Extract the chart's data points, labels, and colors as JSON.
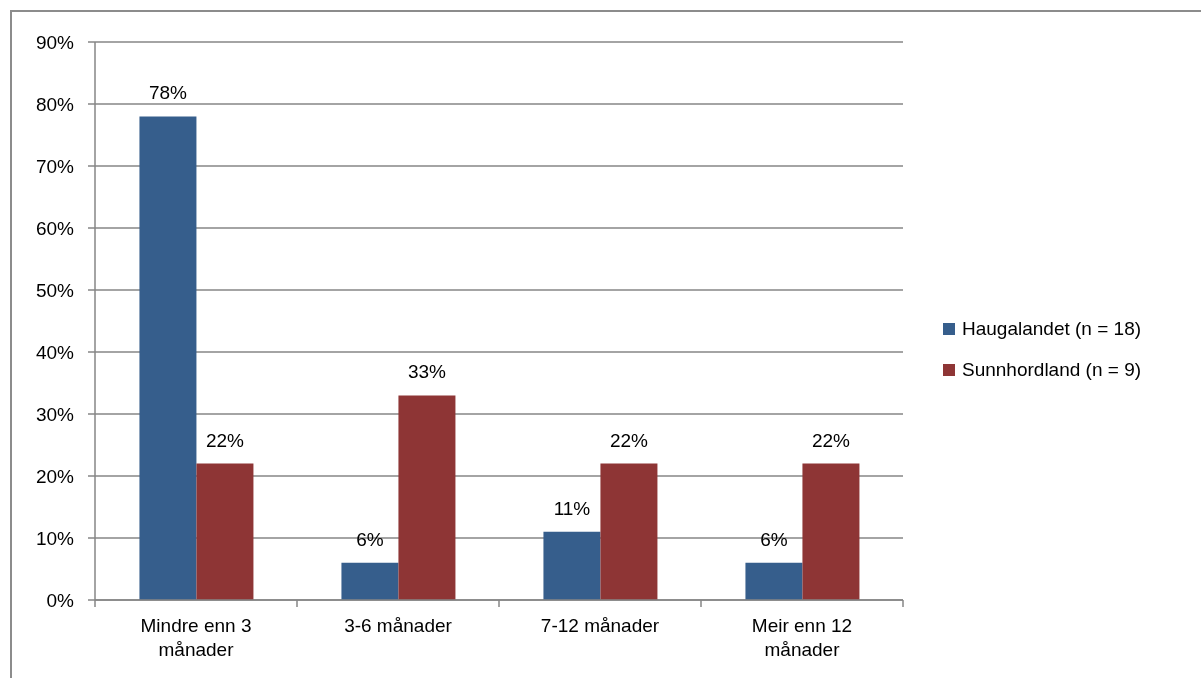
{
  "chart_data": {
    "type": "bar",
    "categories": [
      "Mindre enn 3 månader",
      "3-6 månader",
      "7-12 månader",
      "Meir enn 12 månader"
    ],
    "series": [
      {
        "name": "Haugalandet (n = 18)",
        "color": "#365e8c",
        "values": [
          78,
          6,
          11,
          6
        ],
        "value_labels": [
          "78%",
          "6%",
          "11%",
          "6%"
        ]
      },
      {
        "name": "Sunnhordland (n = 9)",
        "color": "#8e3535",
        "values": [
          22,
          33,
          22,
          22
        ],
        "value_labels": [
          "22%",
          "33%",
          "22%",
          "22%"
        ]
      }
    ],
    "ylim": [
      0,
      90
    ],
    "yticks": [
      {
        "value": 0,
        "label": "0%"
      },
      {
        "value": 10,
        "label": "10%"
      },
      {
        "value": 20,
        "label": "20%"
      },
      {
        "value": 30,
        "label": "30%"
      },
      {
        "value": 40,
        "label": "40%"
      },
      {
        "value": 50,
        "label": "50%"
      },
      {
        "value": 60,
        "label": "60%"
      },
      {
        "value": 70,
        "label": "70%"
      },
      {
        "value": 80,
        "label": "80%"
      },
      {
        "value": 90,
        "label": "90%"
      }
    ],
    "grid": "y",
    "legend": "right"
  }
}
